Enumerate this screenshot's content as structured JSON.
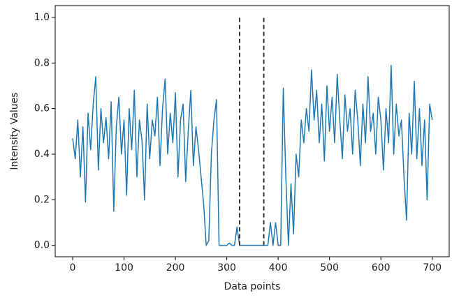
{
  "chart_data": {
    "type": "line",
    "xlabel": "Data points",
    "ylabel": "Intensity Values",
    "x": [
      0,
      5,
      10,
      15,
      20,
      25,
      30,
      35,
      40,
      45,
      50,
      55,
      60,
      65,
      70,
      75,
      80,
      85,
      90,
      95,
      100,
      105,
      110,
      115,
      120,
      125,
      130,
      135,
      140,
      145,
      150,
      155,
      160,
      165,
      170,
      175,
      180,
      185,
      190,
      195,
      200,
      205,
      210,
      215,
      220,
      225,
      230,
      235,
      240,
      245,
      250,
      255,
      260,
      265,
      270,
      275,
      280,
      285,
      290,
      295,
      300,
      305,
      310,
      315,
      320,
      325,
      330,
      335,
      340,
      345,
      350,
      355,
      360,
      365,
      370,
      375,
      380,
      385,
      390,
      395,
      400,
      405,
      410,
      415,
      420,
      425,
      430,
      435,
      440,
      445,
      450,
      455,
      460,
      465,
      470,
      475,
      480,
      485,
      490,
      495,
      500,
      505,
      510,
      515,
      520,
      525,
      530,
      535,
      540,
      545,
      550,
      555,
      560,
      565,
      570,
      575,
      580,
      585,
      590,
      595,
      600,
      605,
      610,
      615,
      620,
      625,
      630,
      635,
      640,
      645,
      650,
      655,
      660,
      665,
      670,
      675,
      680,
      685,
      690,
      695,
      700
    ],
    "values": [
      0.47,
      0.38,
      0.55,
      0.3,
      0.52,
      0.19,
      0.58,
      0.42,
      0.62,
      0.74,
      0.33,
      0.6,
      0.45,
      0.56,
      0.38,
      0.63,
      0.15,
      0.52,
      0.65,
      0.4,
      0.55,
      0.22,
      0.6,
      0.42,
      0.68,
      0.3,
      0.55,
      0.46,
      0.2,
      0.62,
      0.38,
      0.55,
      0.48,
      0.65,
      0.35,
      0.6,
      0.73,
      0.4,
      0.58,
      0.45,
      0.67,
      0.3,
      0.55,
      0.62,
      0.28,
      0.5,
      0.68,
      0.35,
      0.52,
      0.42,
      0.3,
      0.18,
      0,
      0.02,
      0.4,
      0.55,
      0.64,
      0,
      0,
      0,
      0,
      0.01,
      0,
      0,
      0.08,
      0,
      0,
      0,
      0,
      0,
      0,
      0,
      0,
      0,
      0,
      0,
      0,
      0.1,
      0,
      0.1,
      0,
      0,
      0.69,
      0.3,
      0,
      0.27,
      0.05,
      0.4,
      0.3,
      0.55,
      0.45,
      0.6,
      0.5,
      0.77,
      0.55,
      0.68,
      0.45,
      0.62,
      0.37,
      0.7,
      0.5,
      0.65,
      0.45,
      0.75,
      0.55,
      0.38,
      0.66,
      0.5,
      0.6,
      0.4,
      0.68,
      0.55,
      0.35,
      0.62,
      0.45,
      0.74,
      0.5,
      0.58,
      0.4,
      0.65,
      0.55,
      0.33,
      0.6,
      0.45,
      0.79,
      0.4,
      0.62,
      0.48,
      0.55,
      0.3,
      0.11,
      0.58,
      0.4,
      0.72,
      0.38,
      0.6,
      0.35,
      0.55,
      0.2,
      0.62,
      0.55
    ],
    "color": "#1f77b4",
    "vlines": [
      {
        "x": 325,
        "ymin": 0,
        "ymax": 1
      },
      {
        "x": 372,
        "ymin": 0,
        "ymax": 1
      }
    ],
    "vline_color": "#333333",
    "xlim": [
      -34,
      733
    ],
    "ylim": [
      -0.05,
      1.052
    ],
    "xticks": [
      0,
      100,
      200,
      300,
      400,
      500,
      600,
      700
    ],
    "yticks": [
      {
        "value": 0,
        "label": "0.0"
      },
      0.2,
      0.4,
      0.6,
      0.8,
      {
        "value": 1,
        "label": "1.0"
      }
    ],
    "grid": false
  }
}
